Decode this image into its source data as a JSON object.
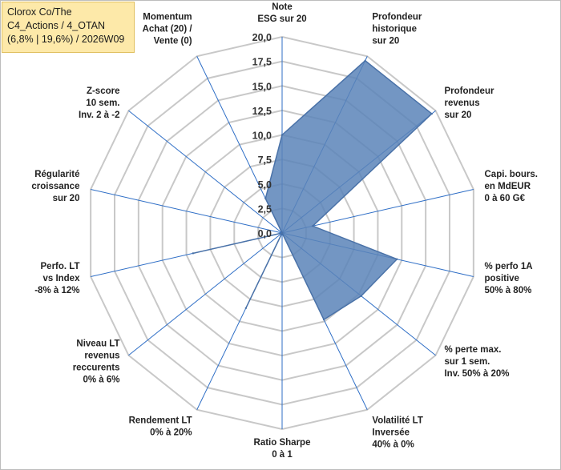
{
  "title_box": {
    "line1": "Clorox Co/The",
    "line2": "C4_Actions / 4_OTAN",
    "line3": "(6,8% | 19,6%) / 2026W09"
  },
  "colors": {
    "fill": "#5b84b8",
    "stroke": "#4a72a8",
    "spoke": "#2e6ec6",
    "ring": "#c8c8c8",
    "title_bg": "#fde9a9"
  },
  "chart_data": {
    "type": "radar",
    "rmin": 0,
    "rmax": 20,
    "ticks": [
      "0,0",
      "2,5",
      "5,0",
      "7,5",
      "10,0",
      "12,5",
      "15,0",
      "17,5",
      "20,0"
    ],
    "tick_values": [
      0,
      2.5,
      5,
      7.5,
      10,
      12.5,
      15,
      17.5,
      20
    ],
    "axes": [
      {
        "label": [
          "Note",
          "ESG sur 20"
        ]
      },
      {
        "label": [
          "Profondeur",
          "historique",
          "sur 20"
        ]
      },
      {
        "label": [
          "Profondeur",
          "revenus",
          "sur 20"
        ]
      },
      {
        "label": [
          "Capi. bours.",
          "en MdEUR",
          "0 à 60 G€"
        ]
      },
      {
        "label": [
          "% perfo 1A",
          "positive",
          "50% à 80%"
        ]
      },
      {
        "label": [
          "% perte max.",
          "sur 1 sem.",
          "Inv. 50% à 20%"
        ]
      },
      {
        "label": [
          "Volatilité LT",
          "Inversée",
          "40% à 0%"
        ]
      },
      {
        "label": [
          "Ratio Sharpe",
          "0 à 1"
        ]
      },
      {
        "label": [
          "Rendement LT",
          "0% à 20%"
        ]
      },
      {
        "label": [
          "Niveau LT",
          "revenus",
          "reccurents",
          "0% à 6%"
        ]
      },
      {
        "label": [
          "Perfo. LT",
          "vs Index",
          "-8% à 12%"
        ]
      },
      {
        "label": [
          "Régularité",
          "croissance",
          "sur 20"
        ]
      },
      {
        "label": [
          "Z-score",
          "10 sem.",
          "Inv. 2 à -2"
        ]
      },
      {
        "label": [
          "Momentum",
          "Achat (20) /",
          "Vente (0)"
        ]
      }
    ],
    "series": [
      {
        "values": [
          10,
          19.5,
          19.5,
          3.2,
          12,
          10.3,
          9.8,
          0,
          8.5,
          0,
          9.3,
          0,
          0,
          3.9
        ]
      }
    ]
  }
}
